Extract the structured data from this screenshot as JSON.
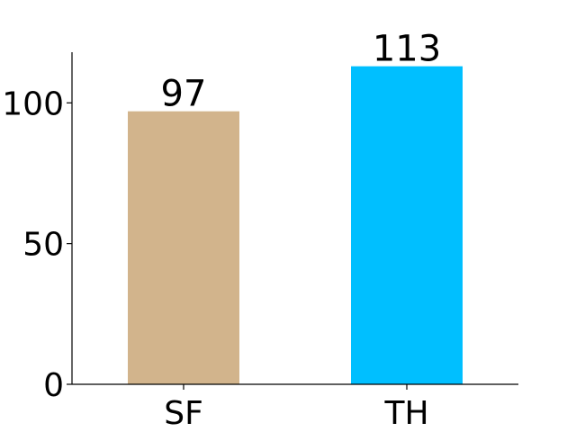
{
  "chart_data": {
    "type": "bar",
    "title": "",
    "xlabel": "",
    "ylabel": "",
    "categories": [
      "SF",
      "TH"
    ],
    "values": [
      97,
      113
    ],
    "data_labels": [
      "97",
      "113"
    ],
    "colors": [
      "#d2b48c",
      "#00bfff"
    ],
    "ylim": [
      0,
      118
    ],
    "yticks": [
      0,
      50,
      100
    ],
    "ytick_labels": [
      "0",
      "50",
      "100"
    ],
    "grid": false,
    "legend": "none"
  }
}
